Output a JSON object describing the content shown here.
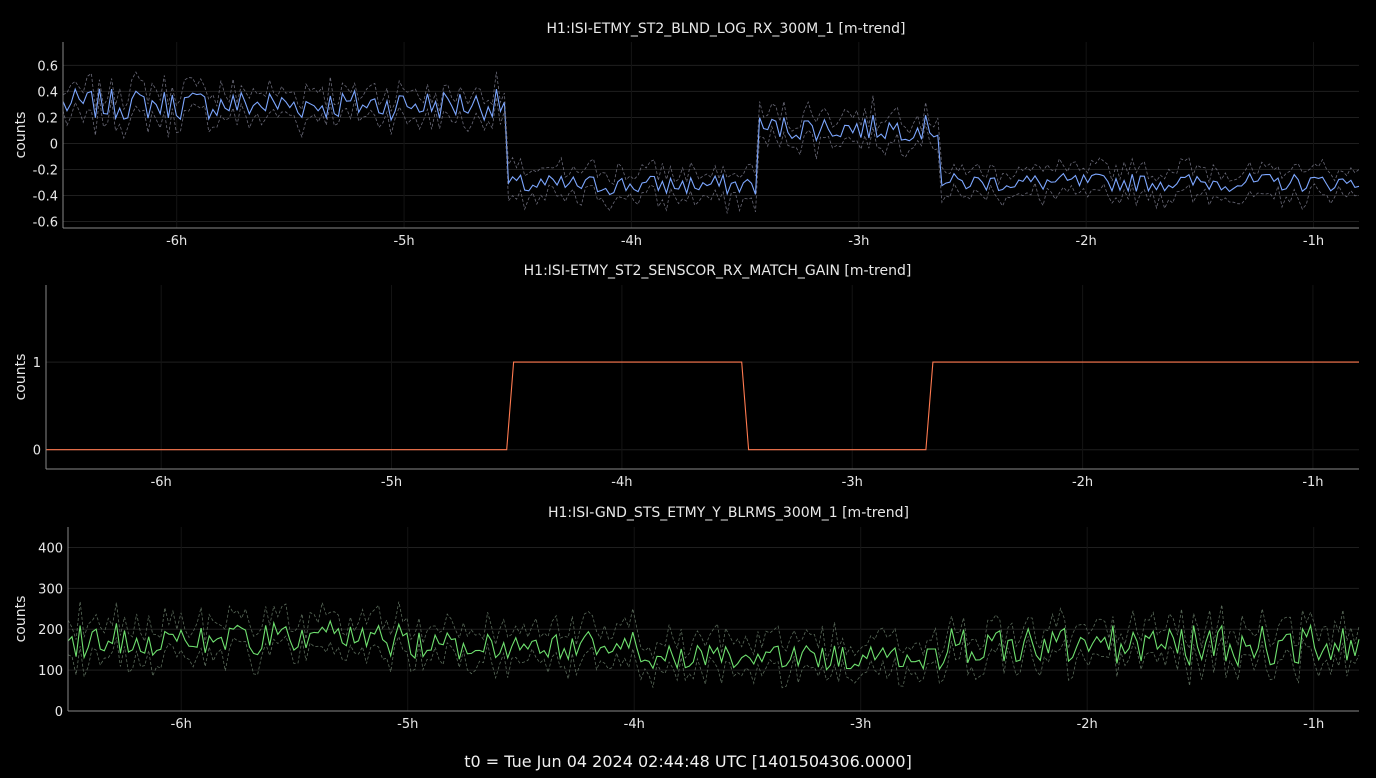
{
  "window": {
    "footer": "t0 = Tue Jun 04 2024 02:44:48 UTC [1401504306.0000]"
  },
  "colors": {
    "background": "#000000",
    "grid": "#1f1f1f",
    "axis": "#888888",
    "text": "#e8e8e8"
  },
  "chart_data": [
    {
      "type": "line",
      "title": "H1:ISI-ETMY_ST2_BLND_LOG_RX_300M_1 [m-trend]",
      "ylabel": "counts",
      "xunit": "hours",
      "xlim": [
        -6.5,
        -0.8
      ],
      "ylim": [
        -0.65,
        0.78
      ],
      "xticks": [
        -6,
        -5,
        -4,
        -3,
        -2,
        -1
      ],
      "xtick_labels": [
        "-6h",
        "-5h",
        "-4h",
        "-3h",
        "-2h",
        "-1h"
      ],
      "yticks": [
        -0.6,
        -0.4,
        -0.2,
        0,
        0.2,
        0.4,
        0.6
      ],
      "ytick_labels": [
        "-0.6",
        "-0.4",
        "-0.2",
        "0",
        "0.2",
        "0.4",
        "0.6"
      ],
      "grid": true,
      "series": [
        {
          "role": "mean",
          "color": "#7da7ff",
          "segments": [
            {
              "from": -6.5,
              "to": -4.55,
              "level": 0.3,
              "noise": 0.12
            },
            {
              "from": -4.55,
              "to": -3.45,
              "level": -0.32,
              "noise": 0.08
            },
            {
              "from": -3.45,
              "to": -2.65,
              "level": 0.12,
              "noise": 0.1
            },
            {
              "from": -2.65,
              "to": -0.8,
              "level": -0.3,
              "noise": 0.07
            }
          ]
        },
        {
          "role": "max",
          "color": "#6a6a78",
          "offset": 0.1
        },
        {
          "role": "min",
          "color": "#6a6a78",
          "offset": -0.1
        }
      ]
    },
    {
      "type": "line",
      "title": "H1:ISI-ETMY_ST2_SENSCOR_RX_MATCH_GAIN [m-trend]",
      "ylabel": "counts",
      "xunit": "hours",
      "xlim": [
        -6.5,
        -0.8
      ],
      "ylim": [
        -0.22,
        1.88
      ],
      "xticks": [
        -6,
        -5,
        -4,
        -3,
        -2,
        -1
      ],
      "xtick_labels": [
        "-6h",
        "-5h",
        "-4h",
        "-3h",
        "-2h",
        "-1h"
      ],
      "yticks": [
        0,
        1
      ],
      "ytick_labels": [
        "0",
        "1"
      ],
      "grid": true,
      "series": [
        {
          "role": "mean",
          "color": "#ff7a50",
          "points": [
            [
              -6.5,
              0
            ],
            [
              -4.5,
              0
            ],
            [
              -4.47,
              1
            ],
            [
              -3.48,
              1
            ],
            [
              -3.45,
              0
            ],
            [
              -2.68,
              0
            ],
            [
              -2.65,
              1
            ],
            [
              -0.8,
              1
            ]
          ]
        }
      ]
    },
    {
      "type": "line",
      "title": "H1:ISI-GND_STS_ETMY_Y_BLRMS_300M_1 [m-trend]",
      "ylabel": "counts",
      "xunit": "hours",
      "xlim": [
        -6.5,
        -0.8
      ],
      "ylim": [
        0,
        450
      ],
      "xticks": [
        -6,
        -5,
        -4,
        -3,
        -2,
        -1
      ],
      "xtick_labels": [
        "-6h",
        "-5h",
        "-4h",
        "-3h",
        "-2h",
        "-1h"
      ],
      "yticks": [
        0,
        100,
        200,
        300,
        400
      ],
      "ytick_labels": [
        "0",
        "100",
        "200",
        "300",
        "400"
      ],
      "grid": true,
      "series": [
        {
          "role": "mean",
          "color": "#6fe06f",
          "segments": [
            {
              "from": -6.5,
              "to": -5.0,
              "level": 175,
              "noise": 45
            },
            {
              "from": -5.0,
              "to": -4.0,
              "level": 160,
              "noise": 35
            },
            {
              "from": -4.0,
              "to": -2.6,
              "level": 130,
              "noise": 30
            },
            {
              "from": -2.6,
              "to": -0.8,
              "level": 160,
              "noise": 50
            }
          ]
        },
        {
          "role": "max",
          "color": "#5a6a5a",
          "offset": 40
        },
        {
          "role": "min",
          "color": "#5a6a5a",
          "offset": -35
        }
      ]
    }
  ]
}
